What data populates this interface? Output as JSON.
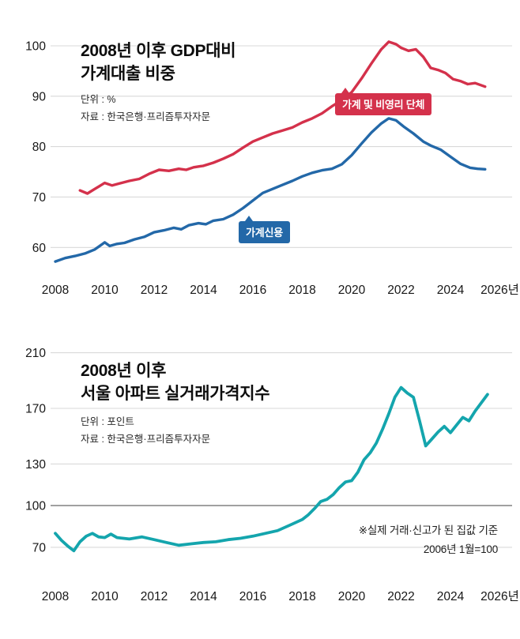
{
  "colors": {
    "red": "#d4314b",
    "blue": "#2368a8",
    "teal": "#14a5ad",
    "grid": "#d9d9d9",
    "baseline": "#8a8a8a",
    "text": "#111111"
  },
  "charts": [
    {
      "title_lines": [
        "2008년 이후 GDP대비",
        "가계대출 비중"
      ],
      "unit": "단위 : %",
      "source": "자료 : 한국은행·프리즘투자자문",
      "chart_data": {
        "type": "line",
        "title": "2008년 이후 GDP대비 가계대출 비중",
        "xlabel": "",
        "ylabel": "%",
        "xlim": [
          2008,
          2026.4
        ],
        "ylim": [
          55.5,
          102.5
        ],
        "y_ticks": [
          60,
          70,
          80,
          90,
          100
        ],
        "x_tick_values": [
          2008,
          2010,
          2012,
          2014,
          2016,
          2018,
          2020,
          2022,
          2024,
          2026
        ],
        "x_tick_labels": [
          "2008",
          "2010",
          "2012",
          "2014",
          "2016",
          "2018",
          "2020",
          "2022",
          "2024",
          "2026년"
        ],
        "grid": true,
        "series": [
          {
            "name": "가계 및 비영리 단체",
            "color": "#d4314b",
            "x": [
              2009.0,
              2009.3,
              2009.6,
              2010.0,
              2010.3,
              2010.6,
              2011.0,
              2011.4,
              2011.8,
              2012.2,
              2012.6,
              2013.0,
              2013.3,
              2013.6,
              2014.0,
              2014.4,
              2014.8,
              2015.2,
              2015.6,
              2016.0,
              2016.4,
              2016.8,
              2017.2,
              2017.6,
              2018.0,
              2018.4,
              2018.8,
              2019.2,
              2019.6,
              2020.0,
              2020.4,
              2020.8,
              2021.2,
              2021.5,
              2021.8,
              2022.0,
              2022.3,
              2022.6,
              2022.9,
              2023.2,
              2023.5,
              2023.8,
              2024.1,
              2024.4,
              2024.7,
              2025.0,
              2025.4
            ],
            "values": [
              71.3,
              70.7,
              71.6,
              72.8,
              72.3,
              72.7,
              73.2,
              73.6,
              74.6,
              75.4,
              75.2,
              75.6,
              75.4,
              75.9,
              76.2,
              76.8,
              77.6,
              78.5,
              79.8,
              81.0,
              81.8,
              82.6,
              83.2,
              83.8,
              84.8,
              85.6,
              86.6,
              88.0,
              89.2,
              90.8,
              93.5,
              96.5,
              99.3,
              100.8,
              100.3,
              99.6,
              99.0,
              99.3,
              97.8,
              95.6,
              95.2,
              94.6,
              93.4,
              93.0,
              92.4,
              92.6,
              91.9
            ]
          },
          {
            "name": "가계신용",
            "color": "#2368a8",
            "x": [
              2008.0,
              2008.4,
              2008.8,
              2009.2,
              2009.6,
              2010.0,
              2010.2,
              2010.5,
              2010.8,
              2011.2,
              2011.6,
              2012.0,
              2012.4,
              2012.8,
              2013.1,
              2013.4,
              2013.8,
              2014.1,
              2014.4,
              2014.8,
              2015.2,
              2015.6,
              2016.0,
              2016.4,
              2016.8,
              2017.2,
              2017.6,
              2018.0,
              2018.4,
              2018.8,
              2019.2,
              2019.6,
              2020.0,
              2020.4,
              2020.8,
              2021.2,
              2021.5,
              2021.8,
              2022.1,
              2022.5,
              2022.9,
              2023.2,
              2023.6,
              2024.0,
              2024.4,
              2024.8,
              2025.1,
              2025.4
            ],
            "values": [
              57.2,
              57.9,
              58.3,
              58.8,
              59.6,
              61.0,
              60.3,
              60.7,
              60.9,
              61.6,
              62.1,
              63.0,
              63.4,
              63.9,
              63.6,
              64.4,
              64.8,
              64.6,
              65.3,
              65.6,
              66.5,
              67.8,
              69.3,
              70.8,
              71.6,
              72.4,
              73.2,
              74.1,
              74.8,
              75.3,
              75.6,
              76.5,
              78.3,
              80.6,
              82.8,
              84.6,
              85.6,
              85.2,
              84.0,
              82.6,
              81.0,
              80.2,
              79.4,
              78.0,
              76.6,
              75.8,
              75.6,
              75.5
            ]
          }
        ]
      }
    },
    {
      "title_lines": [
        "2008년 이후",
        "서울 아파트 실거래가격지수"
      ],
      "unit": "단위 : 포인트",
      "source": "자료 : 한국은행·프리즘투자자문",
      "note_lines": [
        "※실제 거래·신고가 된 집값 기준",
        "2006년 1월=100"
      ],
      "chart_data": {
        "type": "line",
        "title": "2008년 이후 서울 아파트 실거래가격지수",
        "xlabel": "",
        "ylabel": "포인트",
        "xlim": [
          2008,
          2026.4
        ],
        "ylim": [
          62,
          220
        ],
        "y_ticks": [
          70,
          100,
          130,
          170,
          210
        ],
        "baseline": 100,
        "x_tick_values": [
          2008,
          2010,
          2012,
          2014,
          2016,
          2018,
          2020,
          2022,
          2024,
          2026
        ],
        "x_tick_labels": [
          "2008",
          "2010",
          "2012",
          "2014",
          "2016",
          "2018",
          "2020",
          "2022",
          "2024",
          "2026년"
        ],
        "grid": true,
        "series": [
          {
            "name": "서울 아파트 실거래가격지수",
            "color": "#14a5ad",
            "x": [
              2008.0,
              2008.25,
              2008.5,
              2008.75,
              2009.0,
              2009.25,
              2009.5,
              2009.75,
              2010.0,
              2010.25,
              2010.5,
              2010.75,
              2011.0,
              2011.5,
              2012.0,
              2012.5,
              2013.0,
              2013.5,
              2014.0,
              2014.5,
              2015.0,
              2015.5,
              2016.0,
              2016.5,
              2017.0,
              2017.5,
              2018.0,
              2018.25,
              2018.5,
              2018.75,
              2019.0,
              2019.25,
              2019.5,
              2019.75,
              2020.0,
              2020.25,
              2020.5,
              2020.75,
              2021.0,
              2021.25,
              2021.5,
              2021.75,
              2022.0,
              2022.25,
              2022.5,
              2022.75,
              2023.0,
              2023.25,
              2023.5,
              2023.75,
              2024.0,
              2024.25,
              2024.5,
              2024.75,
              2025.0,
              2025.25,
              2025.5
            ],
            "values": [
              80,
              75,
              71,
              67.5,
              74,
              78,
              80,
              77.5,
              77,
              79.5,
              77,
              76.5,
              76,
              77.5,
              75.5,
              73.5,
              71.5,
              72.5,
              73.5,
              74,
              75.5,
              76.5,
              78,
              80,
              82,
              86,
              90,
              93.5,
              98,
              103,
              104.5,
              108,
              113,
              117,
              118,
              124,
              133,
              138,
              145,
              155,
              166,
              178,
              185,
              181,
              178,
              161,
              143,
              148,
              153,
              157,
              152.5,
              158,
              163.5,
              161,
              168,
              174,
              180
            ]
          }
        ]
      }
    }
  ]
}
